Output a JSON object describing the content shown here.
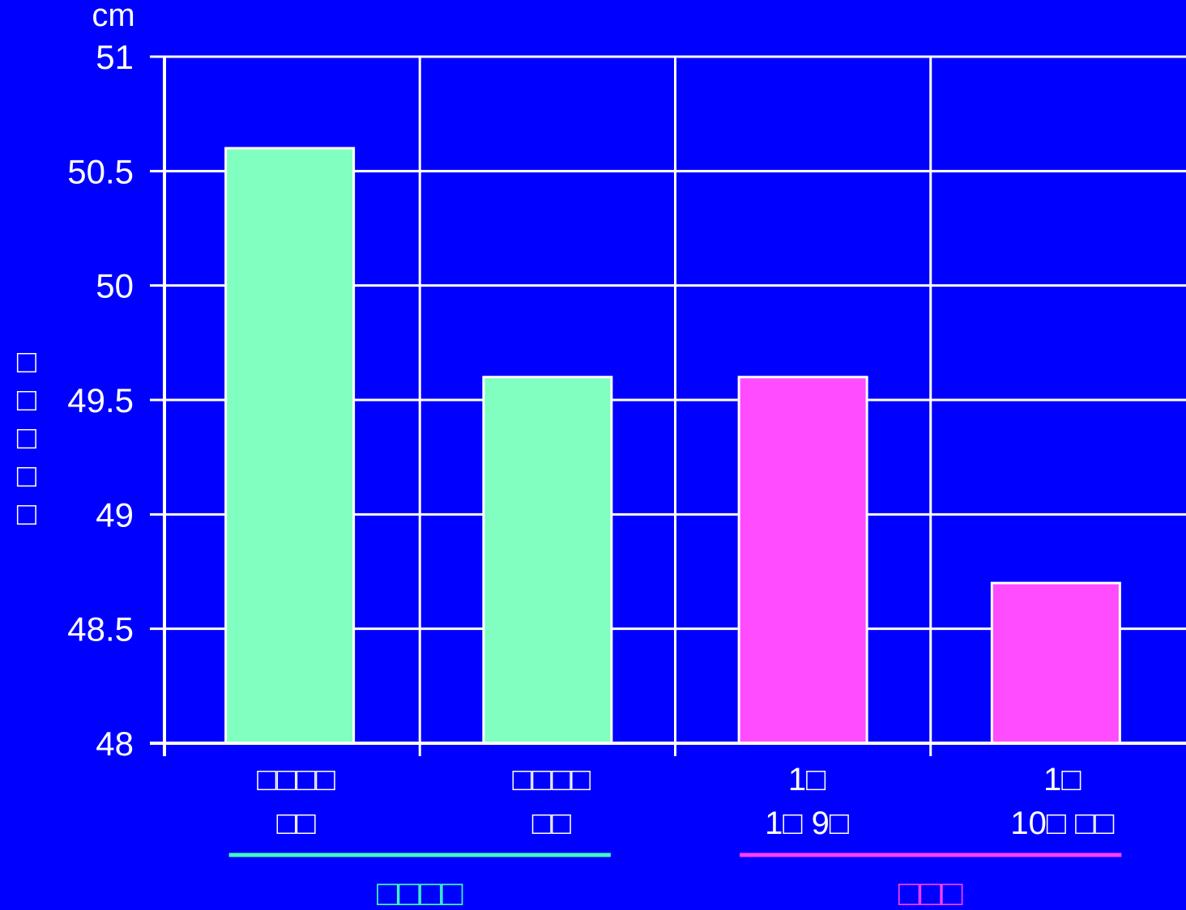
{
  "chart_data": {
    "type": "bar",
    "y_unit": "cm",
    "ylabel": "□□□□□",
    "ylim": [
      48,
      51
    ],
    "yticks": [
      "48",
      "48.5",
      "49",
      "49.5",
      "50",
      "50.5",
      "51"
    ],
    "grid": true,
    "categories": [
      [
        "□□□□",
        "□□"
      ],
      [
        "□□□□",
        "□□"
      ],
      [
        "1□",
        "1□ 9□"
      ],
      [
        "1□",
        "10□ □□"
      ]
    ],
    "values": [
      50.6,
      49.6,
      49.6,
      48.7
    ],
    "bar_colors": [
      "#80FFC0",
      "#80FFC0",
      "#FF4CFF",
      "#FF4CFF"
    ],
    "groups": [
      {
        "label": "□□□□",
        "color": "#40FFC0",
        "categories": [
          0,
          1
        ]
      },
      {
        "label": "□□□",
        "color": "#FF40FF",
        "categories": [
          2,
          3
        ]
      }
    ],
    "background": "#0000FF",
    "axis_color": "#FFFFFF"
  }
}
